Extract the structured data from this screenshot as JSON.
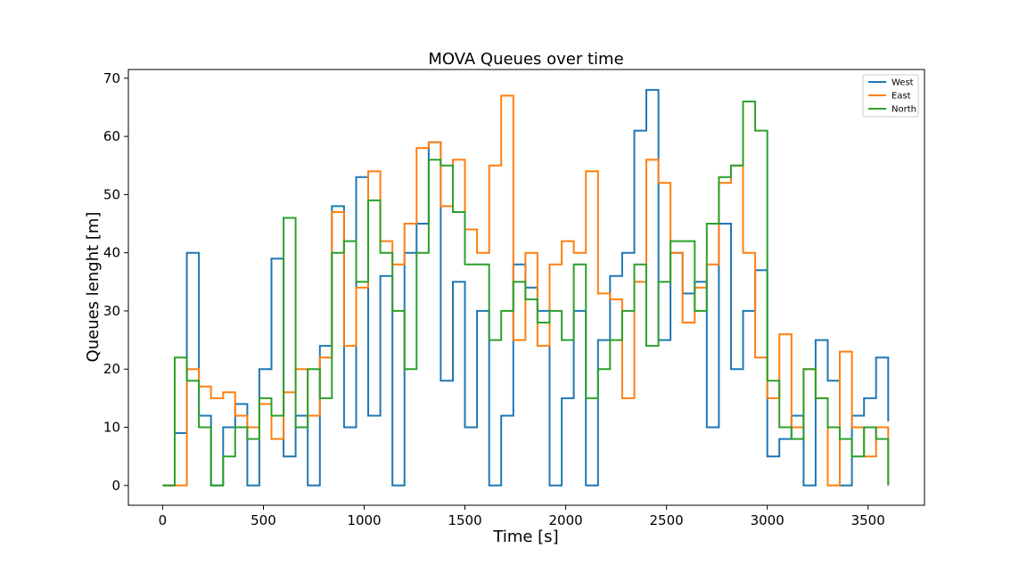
{
  "chart_data": {
    "type": "line",
    "title": "MOVA Queues over time",
    "xlabel": "Time [s]",
    "ylabel": "Queues lenght [m]",
    "xlim": [
      -170,
      3780
    ],
    "ylim": [
      -3.4,
      71.5
    ],
    "xticks": [
      0,
      500,
      1000,
      1500,
      2000,
      2500,
      3000,
      3500
    ],
    "yticks": [
      0,
      10,
      20,
      30,
      40,
      50,
      60,
      70
    ],
    "grid": false,
    "legend_position": "top-right",
    "x": [
      0,
      60,
      120,
      180,
      240,
      300,
      360,
      420,
      480,
      540,
      600,
      660,
      720,
      780,
      840,
      900,
      960,
      1020,
      1080,
      1140,
      1200,
      1260,
      1320,
      1380,
      1440,
      1500,
      1560,
      1620,
      1680,
      1740,
      1800,
      1860,
      1920,
      1980,
      2040,
      2100,
      2160,
      2220,
      2280,
      2340,
      2400,
      2460,
      2520,
      2580,
      2640,
      2700,
      2760,
      2820,
      2880,
      2940,
      3000,
      3060,
      3120,
      3180,
      3240,
      3300,
      3360,
      3420,
      3480,
      3540,
      3600
    ],
    "series": [
      {
        "name": "West",
        "color": "#1f77b4",
        "values": [
          0,
          9,
          40,
          12,
          0,
          10,
          14,
          0,
          20,
          39,
          5,
          12,
          0,
          24,
          48,
          10,
          53,
          12,
          36,
          0,
          40,
          45,
          59,
          18,
          35,
          10,
          30,
          0,
          12,
          38,
          34,
          30,
          0,
          15,
          30,
          0,
          25,
          36,
          40,
          61,
          68,
          25,
          40,
          33,
          35,
          10,
          45,
          20,
          30,
          37,
          5,
          8,
          12,
          0,
          25,
          18,
          0,
          12,
          15,
          22,
          11
        ]
      },
      {
        "name": "East",
        "color": "#ff7f0e",
        "values": [
          0,
          0,
          20,
          17,
          15,
          16,
          12,
          10,
          14,
          8,
          16,
          20,
          12,
          22,
          47,
          24,
          34,
          54,
          42,
          38,
          45,
          58,
          59,
          48,
          56,
          44,
          40,
          55,
          67,
          25,
          40,
          24,
          38,
          42,
          40,
          54,
          33,
          32,
          15,
          35,
          56,
          52,
          40,
          28,
          34,
          38,
          52,
          55,
          40,
          22,
          15,
          26,
          10,
          20,
          15,
          0,
          23,
          10,
          5,
          10,
          0
        ]
      },
      {
        "name": "North",
        "color": "#2ca02c",
        "values": [
          0,
          22,
          18,
          10,
          0,
          5,
          10,
          8,
          15,
          12,
          46,
          10,
          20,
          15,
          40,
          42,
          35,
          49,
          40,
          30,
          20,
          40,
          56,
          55,
          47,
          38,
          38,
          25,
          30,
          35,
          32,
          28,
          30,
          25,
          38,
          15,
          20,
          25,
          30,
          38,
          24,
          35,
          42,
          42,
          30,
          45,
          53,
          55,
          66,
          61,
          18,
          10,
          8,
          20,
          15,
          10,
          8,
          5,
          10,
          8,
          0
        ]
      }
    ]
  }
}
